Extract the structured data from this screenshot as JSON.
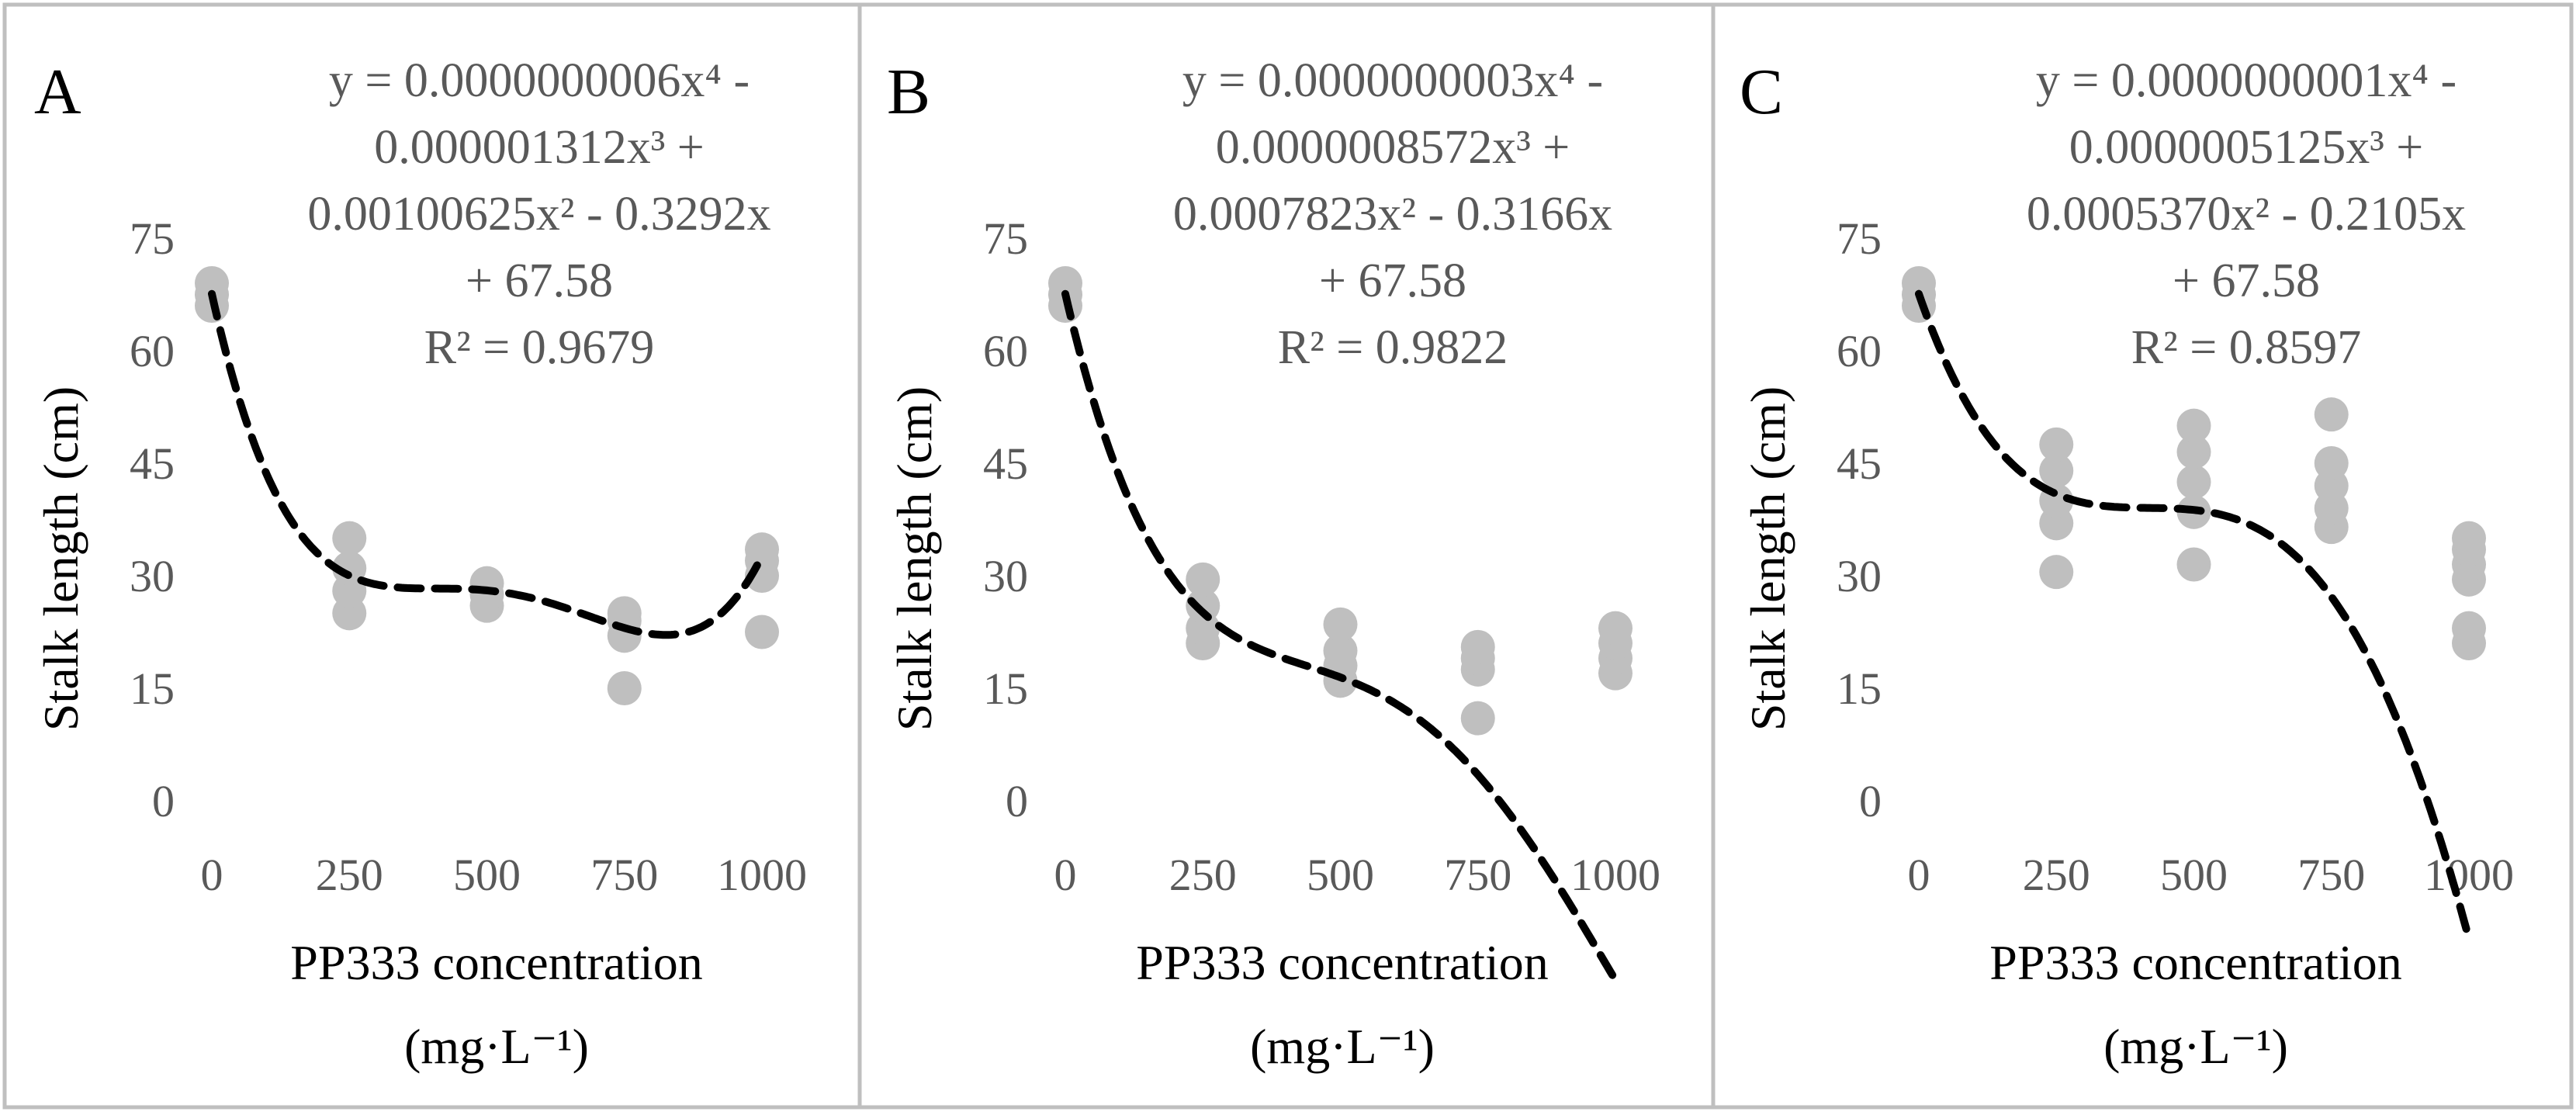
{
  "chart_data": [
    {
      "type": "scatter",
      "panel": "A",
      "equation_lines": [
        "y = 0.0000000006x⁴ -",
        "0.000001312x³ +",
        "0.00100625x² - 0.3292x",
        "+ 67.58",
        "R² = 0.9679"
      ],
      "coefficients": [
        6e-10,
        -1.312e-06,
        0.00100625,
        -0.3292,
        67.58
      ],
      "r2": 0.9679,
      "xlabel_lines": [
        "PP333 concentration",
        "(mg·L⁻¹)"
      ],
      "ylabel": "Stalk length (cm)",
      "x_ticks": [
        "0",
        "250",
        "500",
        "750",
        "1000"
      ],
      "y_ticks": [
        "0",
        "15",
        "30",
        "45",
        "60",
        "75"
      ],
      "xlim": [
        0,
        1000
      ],
      "ylim": [
        0,
        75
      ],
      "points": [
        [
          0,
          66
        ],
        [
          0,
          67.5
        ],
        [
          0,
          69
        ],
        [
          250,
          25
        ],
        [
          250,
          28
        ],
        [
          250,
          31
        ],
        [
          250,
          35
        ],
        [
          500,
          26
        ],
        [
          500,
          27.5
        ],
        [
          500,
          29
        ],
        [
          750,
          15
        ],
        [
          750,
          22
        ],
        [
          750,
          24
        ],
        [
          750,
          25
        ],
        [
          1000,
          22.5
        ],
        [
          1000,
          30
        ],
        [
          1000,
          32
        ],
        [
          1000,
          33.5
        ]
      ],
      "trendline": {
        "style": "dashed",
        "color": "#000000"
      },
      "marker_color": "#bfbfbf"
    },
    {
      "type": "scatter",
      "panel": "B",
      "equation_lines": [
        "y = 0.0000000003x⁴ -",
        "0.0000008572x³ +",
        "0.0007823x² - 0.3166x",
        "+ 67.58",
        "R² = 0.9822"
      ],
      "coefficients": [
        3e-10,
        -8.572e-07,
        0.0007823,
        -0.3166,
        67.58
      ],
      "r2": 0.9822,
      "xlabel_lines": [
        "PP333 concentration",
        "(mg·L⁻¹)"
      ],
      "ylabel": "Stalk length (cm)",
      "x_ticks": [
        "0",
        "250",
        "500",
        "750",
        "1000"
      ],
      "y_ticks": [
        "0",
        "15",
        "30",
        "45",
        "60",
        "75"
      ],
      "xlim": [
        0,
        1000
      ],
      "ylim": [
        0,
        75
      ],
      "points": [
        [
          0,
          66
        ],
        [
          0,
          67.5
        ],
        [
          0,
          69
        ],
        [
          250,
          21
        ],
        [
          250,
          23
        ],
        [
          250,
          26
        ],
        [
          250,
          29.5
        ],
        [
          500,
          16
        ],
        [
          500,
          18
        ],
        [
          500,
          20
        ],
        [
          500,
          23.5
        ],
        [
          750,
          11
        ],
        [
          750,
          17.5
        ],
        [
          750,
          19
        ],
        [
          750,
          20.5
        ],
        [
          1000,
          17
        ],
        [
          1000,
          19
        ],
        [
          1000,
          21
        ],
        [
          1000,
          23
        ]
      ],
      "trendline": {
        "style": "dashed",
        "color": "#000000"
      },
      "marker_color": "#bfbfbf"
    },
    {
      "type": "scatter",
      "panel": "C",
      "equation_lines": [
        "y = 0.0000000001x⁴ -",
        "0.0000005125x³ +",
        "0.0005370x² - 0.2105x",
        "+ 67.58",
        "R² = 0.8597"
      ],
      "coefficients": [
        1e-10,
        -5.125e-07,
        0.000537,
        -0.2105,
        67.58
      ],
      "r2": 0.8597,
      "xlabel_lines": [
        "PP333 concentration",
        "(mg·L⁻¹)"
      ],
      "ylabel": "Stalk length (cm)",
      "x_ticks": [
        "0",
        "250",
        "500",
        "750",
        "1000"
      ],
      "y_ticks": [
        "0",
        "15",
        "30",
        "45",
        "60",
        "75"
      ],
      "xlim": [
        0,
        1000
      ],
      "ylim": [
        0,
        75
      ],
      "points": [
        [
          0,
          66
        ],
        [
          0,
          67.5
        ],
        [
          0,
          69
        ],
        [
          250,
          30.5
        ],
        [
          250,
          37
        ],
        [
          250,
          40
        ],
        [
          250,
          44
        ],
        [
          250,
          47.5
        ],
        [
          500,
          31.5
        ],
        [
          500,
          38.5
        ],
        [
          500,
          42.5
        ],
        [
          500,
          46.5
        ],
        [
          500,
          50
        ],
        [
          750,
          36.5
        ],
        [
          750,
          39
        ],
        [
          750,
          42
        ],
        [
          750,
          45
        ],
        [
          750,
          51.5
        ],
        [
          1000,
          21
        ],
        [
          1000,
          23
        ],
        [
          1000,
          29.5
        ],
        [
          1000,
          31.5
        ],
        [
          1000,
          33.5
        ],
        [
          1000,
          35
        ]
      ],
      "trendline": {
        "style": "dashed",
        "color": "#000000"
      },
      "marker_color": "#bfbfbf"
    }
  ]
}
